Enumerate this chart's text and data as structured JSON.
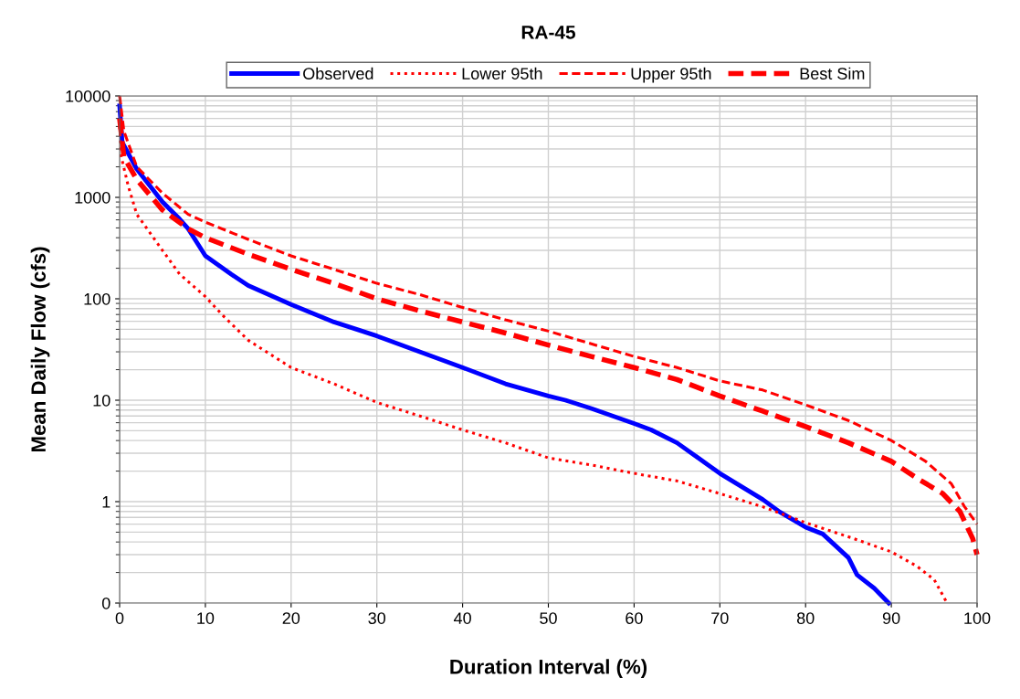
{
  "chart_data": {
    "type": "line",
    "title": "RA-45",
    "xlabel": "Duration Interval (%)",
    "ylabel": "Mean Daily Flow (cfs)",
    "xlim": [
      0,
      100
    ],
    "xticks": [
      0,
      10,
      20,
      30,
      40,
      50,
      60,
      70,
      80,
      90,
      100
    ],
    "ylim": [
      0.1,
      10000
    ],
    "yticks": [
      {
        "value": 0.1,
        "label": "0"
      },
      1,
      10,
      100,
      1000,
      10000
    ],
    "log": "y",
    "grid": true,
    "legend": "top",
    "marker": "none",
    "series": [
      {
        "name": "Observed",
        "color": "#0000ff",
        "line_style": "solid",
        "x": [
          0,
          0.3,
          2,
          5,
          7,
          8,
          10,
          13,
          15,
          20,
          25,
          30,
          35,
          40,
          45,
          50,
          52,
          55,
          60,
          62,
          65,
          70,
          75,
          77,
          80,
          82,
          85,
          86,
          88,
          89.7
        ],
        "values": [
          8000,
          3500,
          1900,
          900,
          610,
          490,
          265,
          175,
          135,
          88,
          59,
          43,
          30,
          21,
          14.5,
          11,
          10,
          8.3,
          5.9,
          5.1,
          3.8,
          1.9,
          1.05,
          0.79,
          0.56,
          0.48,
          0.28,
          0.19,
          0.14,
          0.1
        ]
      },
      {
        "name": "Lower 95th",
        "color": "#ff0000",
        "line_style": "dotted",
        "x": [
          0,
          0.2,
          1,
          2,
          5,
          7,
          10,
          12,
          15,
          20,
          25,
          30,
          35,
          40,
          45,
          50,
          55,
          60,
          65,
          70,
          75,
          80,
          85,
          90,
          93,
          95,
          96.5
        ],
        "values": [
          5000,
          2500,
          1300,
          680,
          300,
          175,
          105,
          69,
          39,
          21,
          14.5,
          9.5,
          7,
          5.1,
          3.8,
          2.7,
          2.3,
          1.9,
          1.6,
          1.2,
          0.89,
          0.62,
          0.45,
          0.32,
          0.23,
          0.17,
          0.1
        ]
      },
      {
        "name": "Upper 95th",
        "color": "#ff0000",
        "line_style": "dashed",
        "x": [
          0,
          0.5,
          2,
          5,
          8,
          10,
          15,
          20,
          25,
          30,
          35,
          40,
          45,
          50,
          55,
          60,
          65,
          70,
          75,
          80,
          85,
          90,
          94,
          97,
          98.5,
          100
        ],
        "values": [
          10000,
          4500,
          2000,
          1100,
          680,
          570,
          385,
          265,
          195,
          142,
          110,
          82,
          62,
          48,
          36,
          27,
          21,
          15.5,
          12.6,
          9,
          6.3,
          4,
          2.5,
          1.5,
          0.9,
          0.6
        ]
      },
      {
        "name": "Best Sim",
        "color": "#ff0000",
        "line_style": "dashed",
        "x": [
          0,
          0.5,
          2,
          5,
          8,
          10,
          15,
          20,
          25,
          30,
          35,
          40,
          45,
          50,
          55,
          60,
          65,
          70,
          75,
          80,
          85,
          90,
          93,
          96,
          98,
          99.5,
          100
        ],
        "values": [
          6000,
          2500,
          1500,
          750,
          490,
          400,
          275,
          195,
          142,
          100,
          76,
          59,
          46,
          35,
          27,
          21,
          16,
          11,
          7.8,
          5.5,
          3.8,
          2.5,
          1.7,
          1.2,
          0.8,
          0.43,
          0.3
        ]
      }
    ]
  }
}
